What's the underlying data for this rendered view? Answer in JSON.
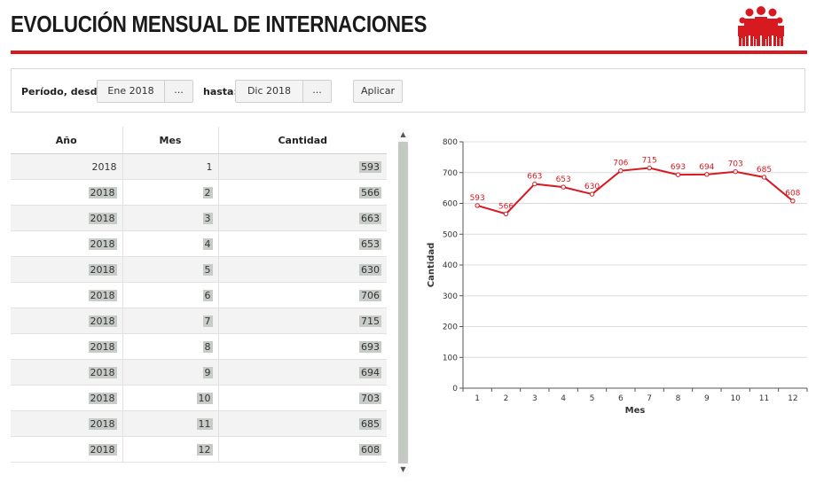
{
  "header": {
    "title": "EVOLUCIÓN MENSUAL DE INTERNACIONES",
    "logo_icon": "family-group-icon",
    "accent_color": "#d71920"
  },
  "filter": {
    "from_label": "Período, desde:",
    "from_value": "Ene 2018",
    "from_picker_label": "...",
    "to_label": "hasta:",
    "to_value": "Dic 2018",
    "to_picker_label": "...",
    "apply_label": "Aplicar"
  },
  "table": {
    "columns": [
      "Año",
      "Mes",
      "Cantidad"
    ],
    "rows": [
      [
        "2018",
        "1",
        "593"
      ],
      [
        "2018",
        "2",
        "566"
      ],
      [
        "2018",
        "3",
        "663"
      ],
      [
        "2018",
        "4",
        "653"
      ],
      [
        "2018",
        "5",
        "630"
      ],
      [
        "2018",
        "6",
        "706"
      ],
      [
        "2018",
        "7",
        "715"
      ],
      [
        "2018",
        "8",
        "693"
      ],
      [
        "2018",
        "9",
        "694"
      ],
      [
        "2018",
        "10",
        "703"
      ],
      [
        "2018",
        "11",
        "685"
      ],
      [
        "2018",
        "12",
        "608"
      ]
    ]
  },
  "scrollbar": {
    "up_icon": "scroll-up-arrow-icon",
    "down_icon": "scroll-down-arrow-icon"
  },
  "chart_data": {
    "type": "line",
    "x": [
      1,
      2,
      3,
      4,
      5,
      6,
      7,
      8,
      9,
      10,
      11,
      12
    ],
    "series": [
      {
        "values": [
          593,
          566,
          663,
          653,
          630,
          706,
          715,
          693,
          694,
          703,
          685,
          608
        ],
        "color": "#d71920"
      }
    ],
    "xlabel": "Mes",
    "ylabel": "Cantidad",
    "ylim": [
      0,
      800
    ],
    "yticks": [
      0,
      100,
      200,
      300,
      400,
      500,
      600,
      700,
      800
    ],
    "grid": true,
    "data_labels": true
  }
}
